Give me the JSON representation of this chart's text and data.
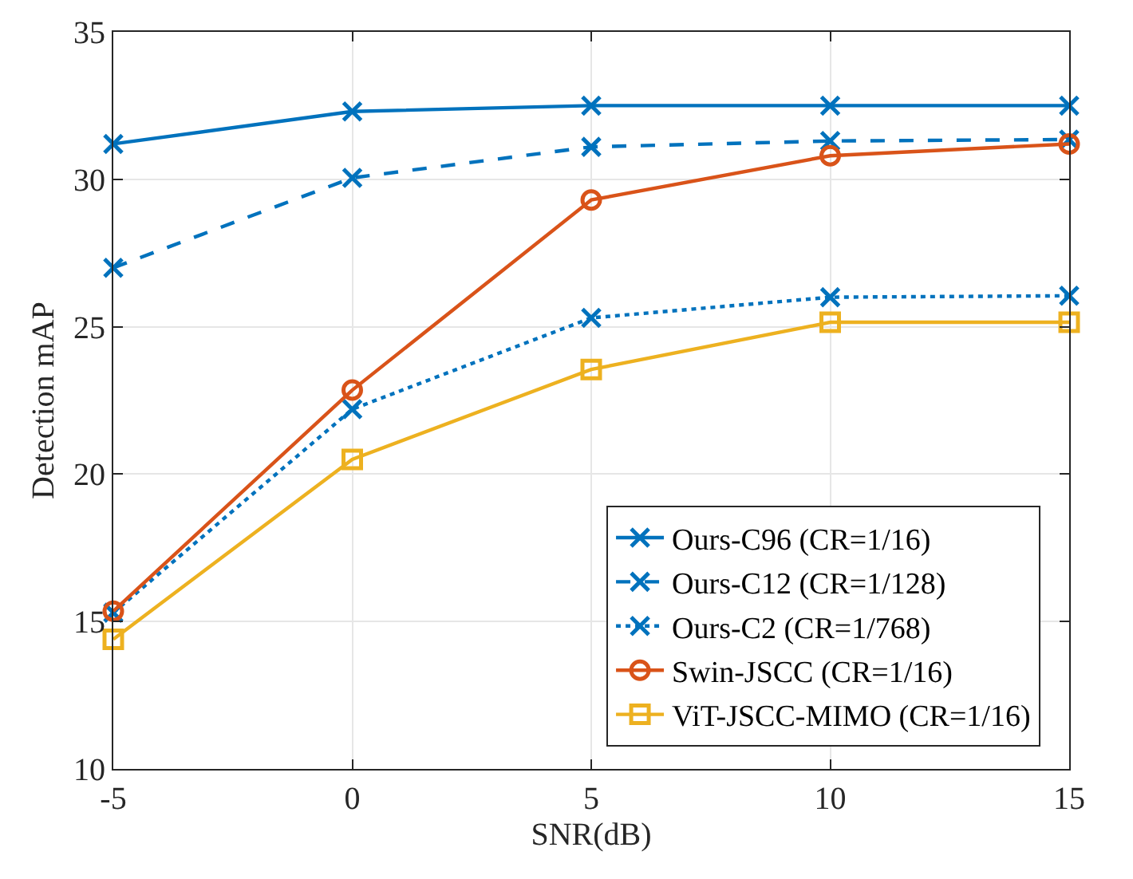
{
  "chart_data": {
    "type": "line",
    "xlabel": "SNR(dB)",
    "ylabel": "Detection mAP",
    "x": [
      -5,
      0,
      5,
      10,
      15
    ],
    "series": [
      {
        "name": "Ours-C96 (CR=1/16)",
        "color": "#0072bd",
        "marker": "cross",
        "line_style": "solid",
        "values": [
          31.2,
          32.3,
          32.5,
          32.5,
          32.5
        ]
      },
      {
        "name": "Ours-C12 (CR=1/128)",
        "color": "#0072bd",
        "marker": "cross",
        "line_style": "dashed",
        "values": [
          27.0,
          30.05,
          31.1,
          31.3,
          31.35
        ]
      },
      {
        "name": "Ours-C2 (CR=1/768)",
        "color": "#0072bd",
        "marker": "cross",
        "line_style": "dotted",
        "values": [
          15.3,
          22.2,
          25.3,
          26.0,
          26.05
        ]
      },
      {
        "name": "Swin-JSCC (CR=1/16)",
        "color": "#d95319",
        "marker": "circle",
        "line_style": "solid",
        "values": [
          15.35,
          22.85,
          29.3,
          30.8,
          31.2
        ]
      },
      {
        "name": "ViT-JSCC-MIMO (CR=1/16)",
        "color": "#edb120",
        "marker": "square",
        "line_style": "solid",
        "values": [
          14.4,
          20.5,
          23.55,
          25.15,
          25.15
        ]
      }
    ],
    "xlim": [
      -5,
      15
    ],
    "xticks": [
      -5,
      0,
      5,
      10,
      15
    ],
    "ylim": [
      10,
      35
    ],
    "yticks": [
      10,
      15,
      20,
      25,
      30,
      35
    ],
    "grid": true,
    "legend": "bottom right"
  }
}
